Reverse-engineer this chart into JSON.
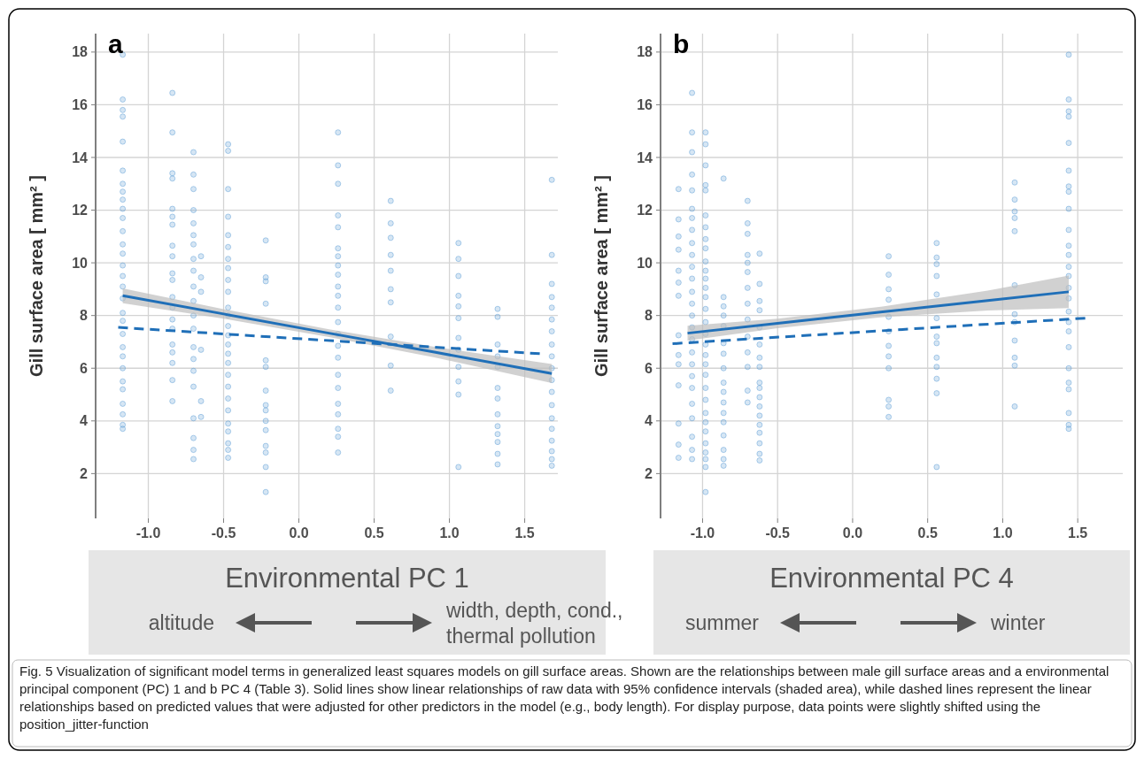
{
  "chart_data": [
    {
      "type": "scatter",
      "title": "a",
      "xlabel": "Environmental PC 1",
      "ylabel": "Gill surface area [ mm² ]",
      "xlim": [
        -1.35,
        1.72
      ],
      "ylim": [
        0.3,
        18.7
      ],
      "xticks": [
        {
          "value": -1,
          "label": "-1.0"
        },
        {
          "value": -0.5,
          "label": "-0.5"
        },
        {
          "value": 0,
          "label": "0.0"
        },
        {
          "value": 0.5,
          "label": "0.5"
        },
        {
          "value": 1,
          "label": "1.0"
        },
        {
          "value": 1.5,
          "label": "1.5"
        }
      ],
      "yticks": [
        2,
        4,
        6,
        8,
        10,
        12,
        14,
        16,
        18
      ],
      "grid": true,
      "annotations": [
        "altitude",
        "width, depth, cond.,\nthermal pollution",
        "Fig. 5 Visualization of significant model terms in generalized least squares models on gill surface areas. Shown are the relationships between male gill surface areas and a environmental principal component (PC) 1 and b PC 4 (Table 3). Solid lines show linear relationships of raw data with 95% confidence intervals (shaded area), while dashed lines represent the linear relationships based on predicted values that were adjusted for other predictors in the model (e.g., body length). For display purpose, data points were slightly shifted using the position_jitter-function"
      ],
      "series": [
        {
          "type": "scatter",
          "marker": "circle",
          "color": "#5b9bd5",
          "x": [
            -1.17,
            -1.17,
            -1.17,
            -1.17,
            -1.17,
            -1.17,
            -1.17,
            -1.17,
            -1.17,
            -1.17,
            -1.17,
            -1.17,
            -1.17,
            -1.17,
            -1.17,
            -1.17,
            -1.17,
            -1.17,
            -1.17,
            -1.17,
            -1.17,
            -1.17,
            -1.17,
            -1.17,
            -1.17,
            -1.17,
            -1.17,
            -1.17,
            -1.17,
            -1.17,
            -0.84,
            -0.84,
            -0.84,
            -0.84,
            -0.84,
            -0.84,
            -0.84,
            -0.84,
            -0.84,
            -0.84,
            -0.84,
            -0.84,
            -0.84,
            -0.84,
            -0.84,
            -0.84,
            -0.84,
            -0.84,
            -0.84,
            -0.84,
            -0.7,
            -0.7,
            -0.7,
            -0.7,
            -0.7,
            -0.7,
            -0.7,
            -0.7,
            -0.7,
            -0.7,
            -0.7,
            -0.7,
            -0.7,
            -0.7,
            -0.7,
            -0.7,
            -0.7,
            -0.7,
            -0.7,
            -0.7,
            -0.7,
            -0.65,
            -0.65,
            -0.65,
            -0.65,
            -0.65,
            -0.65,
            -0.47,
            -0.47,
            -0.47,
            -0.47,
            -0.47,
            -0.47,
            -0.47,
            -0.47,
            -0.47,
            -0.47,
            -0.47,
            -0.47,
            -0.47,
            -0.47,
            -0.47,
            -0.47,
            -0.47,
            -0.47,
            -0.47,
            -0.47,
            -0.47,
            -0.47,
            -0.47,
            -0.47,
            -0.47,
            -0.47,
            -0.22,
            -0.22,
            -0.22,
            -0.22,
            -0.22,
            -0.22,
            -0.22,
            -0.22,
            -0.22,
            -0.22,
            -0.22,
            -0.22,
            -0.22,
            -0.22,
            -0.22,
            0.26,
            0.26,
            0.26,
            0.26,
            0.26,
            0.26,
            0.26,
            0.26,
            0.26,
            0.26,
            0.26,
            0.26,
            0.26,
            0.26,
            0.26,
            0.26,
            0.26,
            0.26,
            0.26,
            0.26,
            0.26,
            0.26,
            0.26,
            0.61,
            0.61,
            0.61,
            0.61,
            0.61,
            0.61,
            0.61,
            0.61,
            0.61,
            0.61,
            1.06,
            1.06,
            1.06,
            1.06,
            1.06,
            1.06,
            1.06,
            1.06,
            1.06,
            1.06,
            1.06,
            1.06,
            1.32,
            1.32,
            1.32,
            1.32,
            1.32,
            1.32,
            1.32,
            1.32,
            1.32,
            1.32,
            1.32,
            1.32,
            1.32,
            1.68,
            1.68,
            1.68,
            1.68,
            1.68,
            1.68,
            1.68,
            1.68,
            1.68,
            1.68,
            1.68,
            1.68,
            1.68,
            1.68,
            1.68,
            1.68,
            1.68,
            1.68,
            1.68
          ],
          "values": [
            17.9,
            16.2,
            15.8,
            15.55,
            14.6,
            13.5,
            13.0,
            12.7,
            12.4,
            12.05,
            11.7,
            11.2,
            10.7,
            10.35,
            9.9,
            9.5,
            9.1,
            8.65,
            8.1,
            7.8,
            7.3,
            6.8,
            6.45,
            6.0,
            5.5,
            5.2,
            4.65,
            4.25,
            3.85,
            3.7,
            16.45,
            14.95,
            13.4,
            13.2,
            12.05,
            11.75,
            11.45,
            10.65,
            10.25,
            9.6,
            9.35,
            8.7,
            8.3,
            7.85,
            7.5,
            6.9,
            6.6,
            6.2,
            5.55,
            4.75,
            14.2,
            13.35,
            12.8,
            12.0,
            11.5,
            11.05,
            10.7,
            10.15,
            9.7,
            9.1,
            8.55,
            8.0,
            7.5,
            6.8,
            6.35,
            5.9,
            5.3,
            4.1,
            3.35,
            2.9,
            2.55,
            10.25,
            9.45,
            8.9,
            6.7,
            4.75,
            4.15,
            14.5,
            14.25,
            12.8,
            11.75,
            11.05,
            10.6,
            10.15,
            9.8,
            9.35,
            8.9,
            8.3,
            8.0,
            7.6,
            7.25,
            6.9,
            6.55,
            6.2,
            5.75,
            5.3,
            4.85,
            4.4,
            3.9,
            3.6,
            3.15,
            2.9,
            2.6,
            10.85,
            9.45,
            9.3,
            8.45,
            6.3,
            6.05,
            5.15,
            4.6,
            4.4,
            4.0,
            3.65,
            3.05,
            2.8,
            2.25,
            1.3,
            14.95,
            13.7,
            13.0,
            11.8,
            11.35,
            10.55,
            10.25,
            9.9,
            9.55,
            9.1,
            8.75,
            8.3,
            7.75,
            7.3,
            6.85,
            6.4,
            5.75,
            5.25,
            4.65,
            4.25,
            3.7,
            3.4,
            2.8,
            12.35,
            11.5,
            10.95,
            10.3,
            9.7,
            9.0,
            8.5,
            7.2,
            6.1,
            5.15,
            10.75,
            10.15,
            9.5,
            8.75,
            8.35,
            7.9,
            7.15,
            6.7,
            6.05,
            5.5,
            5.0,
            2.25,
            8.25,
            7.95,
            6.9,
            6.45,
            6.05,
            5.25,
            4.85,
            4.25,
            3.8,
            3.5,
            3.2,
            2.75,
            2.35,
            13.15,
            10.3,
            9.2,
            8.7,
            8.3,
            7.85,
            7.4,
            6.9,
            6.45,
            6.0,
            5.55,
            5.1,
            4.6,
            4.1,
            3.7,
            3.25,
            2.85,
            2.55,
            2.3
          ]
        },
        {
          "type": "line",
          "line_style": "solid",
          "color": "#1f6fb8",
          "x": [
            -1.17,
            -0.5,
            0.2,
            0.9,
            1.68
          ],
          "values": [
            8.75,
            8.06,
            7.33,
            6.61,
            5.8
          ],
          "lower": [
            8.47,
            7.88,
            7.18,
            6.41,
            5.44
          ],
          "upper": [
            9.03,
            8.24,
            7.48,
            6.81,
            6.16
          ]
        },
        {
          "type": "line",
          "line_style": "dashed",
          "color": "#1f6fb8",
          "x": [
            -1.2,
            1.6
          ],
          "values": [
            7.55,
            6.55
          ]
        }
      ]
    },
    {
      "type": "scatter",
      "title": "b",
      "xlabel": "Environmental PC 4",
      "ylabel": "Gill surface area [ mm² ]",
      "xlim": [
        -1.28,
        1.8
      ],
      "ylim": [
        0.3,
        18.7
      ],
      "xticks": [
        {
          "value": -1,
          "label": "-1.0"
        },
        {
          "value": -0.5,
          "label": "-0.5"
        },
        {
          "value": 0,
          "label": "0.0"
        },
        {
          "value": 0.5,
          "label": "0.5"
        },
        {
          "value": 1,
          "label": "1.0"
        },
        {
          "value": 1.5,
          "label": "1.5"
        }
      ],
      "yticks": [
        2,
        4,
        6,
        8,
        10,
        12,
        14,
        16,
        18
      ],
      "grid": true,
      "annotations": [
        "summer",
        "winter"
      ],
      "series": [
        {
          "type": "scatter",
          "marker": "circle",
          "color": "#5b9bd5",
          "x": [
            -1.16,
            -1.16,
            -1.16,
            -1.16,
            -1.16,
            -1.16,
            -1.16,
            -1.16,
            -1.16,
            -1.16,
            -1.16,
            -1.16,
            -1.16,
            -1.16,
            -1.07,
            -1.07,
            -1.07,
            -1.07,
            -1.07,
            -1.07,
            -1.07,
            -1.07,
            -1.07,
            -1.07,
            -1.07,
            -1.07,
            -1.07,
            -1.07,
            -1.07,
            -1.07,
            -1.07,
            -1.07,
            -1.07,
            -1.07,
            -1.07,
            -1.07,
            -1.07,
            -1.07,
            -1.07,
            -1.07,
            -0.98,
            -0.98,
            -0.98,
            -0.98,
            -0.98,
            -0.98,
            -0.98,
            -0.98,
            -0.98,
            -0.98,
            -0.98,
            -0.98,
            -0.98,
            -0.98,
            -0.98,
            -0.98,
            -0.98,
            -0.98,
            -0.98,
            -0.98,
            -0.98,
            -0.98,
            -0.98,
            -0.98,
            -0.98,
            -0.98,
            -0.98,
            -0.98,
            -0.98,
            -0.98,
            -0.98,
            -0.86,
            -0.86,
            -0.86,
            -0.86,
            -0.86,
            -0.86,
            -0.86,
            -0.86,
            -0.86,
            -0.86,
            -0.86,
            -0.86,
            -0.86,
            -0.86,
            -0.86,
            -0.86,
            -0.86,
            -0.7,
            -0.7,
            -0.7,
            -0.7,
            -0.7,
            -0.7,
            -0.7,
            -0.7,
            -0.7,
            -0.7,
            -0.7,
            -0.7,
            -0.7,
            -0.7,
            -0.62,
            -0.62,
            -0.62,
            -0.62,
            -0.62,
            -0.62,
            -0.62,
            -0.62,
            -0.62,
            -0.62,
            -0.62,
            -0.62,
            -0.62,
            -0.62,
            -0.62,
            -0.62,
            -0.62,
            -0.62,
            0.24,
            0.24,
            0.24,
            0.24,
            0.24,
            0.24,
            0.24,
            0.24,
            0.24,
            0.24,
            0.24,
            0.24,
            0.56,
            0.56,
            0.56,
            0.56,
            0.56,
            0.56,
            0.56,
            0.56,
            0.56,
            0.56,
            0.56,
            0.56,
            0.56,
            1.08,
            1.08,
            1.08,
            1.08,
            1.08,
            1.08,
            1.08,
            1.08,
            1.08,
            1.08,
            1.08,
            1.08,
            1.44,
            1.44,
            1.44,
            1.44,
            1.44,
            1.44,
            1.44,
            1.44,
            1.44,
            1.44,
            1.44,
            1.44,
            1.44,
            1.44,
            1.44,
            1.44,
            1.44,
            1.44,
            1.44,
            1.44,
            1.44,
            1.44,
            1.44,
            1.44,
            1.44,
            1.44
          ],
          "values": [
            12.8,
            11.65,
            11.0,
            10.5,
            9.7,
            9.25,
            8.75,
            7.25,
            6.5,
            6.15,
            5.35,
            3.9,
            3.1,
            2.6,
            16.45,
            14.95,
            14.2,
            13.35,
            12.75,
            12.05,
            11.7,
            11.25,
            10.75,
            10.3,
            9.85,
            9.4,
            8.9,
            8.45,
            8.0,
            7.55,
            7.1,
            6.6,
            6.15,
            5.7,
            5.25,
            4.65,
            4.1,
            3.4,
            2.9,
            2.55,
            14.95,
            14.5,
            13.7,
            12.95,
            12.75,
            11.8,
            11.35,
            10.9,
            10.55,
            10.05,
            9.7,
            9.4,
            9.05,
            8.7,
            8.25,
            7.75,
            7.3,
            6.9,
            6.5,
            6.15,
            5.75,
            5.25,
            4.8,
            4.3,
            3.95,
            3.6,
            3.15,
            2.8,
            2.55,
            2.25,
            1.3,
            13.2,
            8.7,
            8.35,
            8.0,
            7.6,
            6.95,
            6.55,
            6.0,
            5.45,
            5.1,
            4.7,
            4.3,
            3.95,
            3.45,
            2.9,
            2.55,
            2.3,
            12.35,
            11.5,
            11.1,
            10.3,
            10.0,
            9.65,
            9.05,
            8.45,
            7.85,
            7.2,
            6.6,
            6.05,
            5.15,
            4.7,
            10.35,
            9.2,
            8.55,
            8.2,
            7.55,
            6.9,
            6.4,
            6.05,
            5.45,
            5.25,
            4.9,
            4.55,
            4.2,
            3.85,
            3.55,
            3.15,
            2.75,
            2.5,
            10.25,
            9.55,
            9.0,
            8.6,
            7.95,
            7.4,
            6.85,
            6.45,
            6.0,
            4.8,
            4.55,
            4.15,
            10.75,
            10.2,
            9.95,
            9.5,
            8.8,
            7.9,
            7.2,
            6.95,
            6.4,
            6.05,
            5.6,
            5.05,
            2.25,
            13.05,
            12.4,
            11.95,
            11.7,
            11.2,
            9.15,
            8.05,
            7.75,
            7.05,
            6.4,
            6.1,
            4.55,
            17.9,
            16.2,
            15.75,
            15.55,
            14.55,
            13.5,
            12.9,
            12.7,
            12.05,
            11.25,
            10.65,
            10.3,
            9.85,
            9.5,
            9.05,
            8.65,
            8.15,
            7.75,
            7.4,
            6.8,
            6.0,
            5.45,
            5.2,
            4.3,
            3.85,
            3.7
          ]
        },
        {
          "type": "line",
          "line_style": "solid",
          "color": "#1f6fb8",
          "x": [
            -1.1,
            -0.5,
            0.2,
            0.9,
            1.44
          ],
          "values": [
            7.33,
            7.7,
            8.14,
            8.57,
            8.9
          ],
          "lower": [
            7.05,
            7.52,
            7.94,
            8.19,
            8.28
          ],
          "upper": [
            7.61,
            7.88,
            8.34,
            8.95,
            9.52
          ]
        },
        {
          "type": "line",
          "line_style": "dashed",
          "color": "#1f6fb8",
          "x": [
            -1.2,
            1.55
          ],
          "values": [
            6.93,
            7.9
          ]
        }
      ]
    }
  ]
}
